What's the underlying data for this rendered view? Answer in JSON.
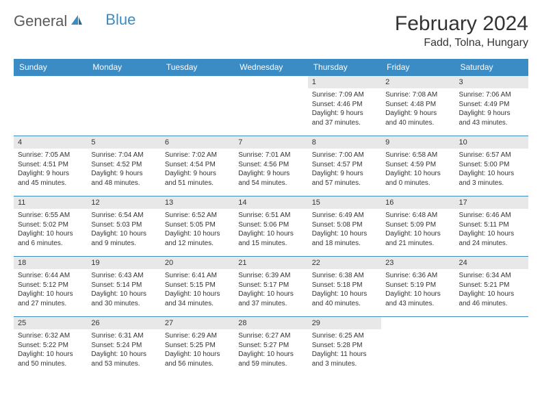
{
  "logo": {
    "text1": "General",
    "text2": "Blue"
  },
  "title": "February 2024",
  "location": "Fadd, Tolna, Hungary",
  "colors": {
    "header_bg": "#3b8bc4",
    "header_fg": "#ffffff",
    "daynum_bg": "#e8e8e8",
    "border": "#3b8bc4",
    "text": "#333333",
    "logo_gray": "#5a5a5a",
    "logo_blue": "#3b8bc4"
  },
  "fonts": {
    "title_size": 30,
    "location_size": 16,
    "header_size": 12,
    "daynum_size": 11,
    "info_size": 10
  },
  "weekdays": [
    "Sunday",
    "Monday",
    "Tuesday",
    "Wednesday",
    "Thursday",
    "Friday",
    "Saturday"
  ],
  "weeks": [
    [
      null,
      null,
      null,
      null,
      {
        "n": "1",
        "sr": "7:09 AM",
        "ss": "4:46 PM",
        "dh": "9",
        "dm": "37"
      },
      {
        "n": "2",
        "sr": "7:08 AM",
        "ss": "4:48 PM",
        "dh": "9",
        "dm": "40"
      },
      {
        "n": "3",
        "sr": "7:06 AM",
        "ss": "4:49 PM",
        "dh": "9",
        "dm": "43"
      }
    ],
    [
      {
        "n": "4",
        "sr": "7:05 AM",
        "ss": "4:51 PM",
        "dh": "9",
        "dm": "45"
      },
      {
        "n": "5",
        "sr": "7:04 AM",
        "ss": "4:52 PM",
        "dh": "9",
        "dm": "48"
      },
      {
        "n": "6",
        "sr": "7:02 AM",
        "ss": "4:54 PM",
        "dh": "9",
        "dm": "51"
      },
      {
        "n": "7",
        "sr": "7:01 AM",
        "ss": "4:56 PM",
        "dh": "9",
        "dm": "54"
      },
      {
        "n": "8",
        "sr": "7:00 AM",
        "ss": "4:57 PM",
        "dh": "9",
        "dm": "57"
      },
      {
        "n": "9",
        "sr": "6:58 AM",
        "ss": "4:59 PM",
        "dh": "10",
        "dm": "0"
      },
      {
        "n": "10",
        "sr": "6:57 AM",
        "ss": "5:00 PM",
        "dh": "10",
        "dm": "3"
      }
    ],
    [
      {
        "n": "11",
        "sr": "6:55 AM",
        "ss": "5:02 PM",
        "dh": "10",
        "dm": "6"
      },
      {
        "n": "12",
        "sr": "6:54 AM",
        "ss": "5:03 PM",
        "dh": "10",
        "dm": "9"
      },
      {
        "n": "13",
        "sr": "6:52 AM",
        "ss": "5:05 PM",
        "dh": "10",
        "dm": "12"
      },
      {
        "n": "14",
        "sr": "6:51 AM",
        "ss": "5:06 PM",
        "dh": "10",
        "dm": "15"
      },
      {
        "n": "15",
        "sr": "6:49 AM",
        "ss": "5:08 PM",
        "dh": "10",
        "dm": "18"
      },
      {
        "n": "16",
        "sr": "6:48 AM",
        "ss": "5:09 PM",
        "dh": "10",
        "dm": "21"
      },
      {
        "n": "17",
        "sr": "6:46 AM",
        "ss": "5:11 PM",
        "dh": "10",
        "dm": "24"
      }
    ],
    [
      {
        "n": "18",
        "sr": "6:44 AM",
        "ss": "5:12 PM",
        "dh": "10",
        "dm": "27"
      },
      {
        "n": "19",
        "sr": "6:43 AM",
        "ss": "5:14 PM",
        "dh": "10",
        "dm": "30"
      },
      {
        "n": "20",
        "sr": "6:41 AM",
        "ss": "5:15 PM",
        "dh": "10",
        "dm": "34"
      },
      {
        "n": "21",
        "sr": "6:39 AM",
        "ss": "5:17 PM",
        "dh": "10",
        "dm": "37"
      },
      {
        "n": "22",
        "sr": "6:38 AM",
        "ss": "5:18 PM",
        "dh": "10",
        "dm": "40"
      },
      {
        "n": "23",
        "sr": "6:36 AM",
        "ss": "5:19 PM",
        "dh": "10",
        "dm": "43"
      },
      {
        "n": "24",
        "sr": "6:34 AM",
        "ss": "5:21 PM",
        "dh": "10",
        "dm": "46"
      }
    ],
    [
      {
        "n": "25",
        "sr": "6:32 AM",
        "ss": "5:22 PM",
        "dh": "10",
        "dm": "50"
      },
      {
        "n": "26",
        "sr": "6:31 AM",
        "ss": "5:24 PM",
        "dh": "10",
        "dm": "53"
      },
      {
        "n": "27",
        "sr": "6:29 AM",
        "ss": "5:25 PM",
        "dh": "10",
        "dm": "56"
      },
      {
        "n": "28",
        "sr": "6:27 AM",
        "ss": "5:27 PM",
        "dh": "10",
        "dm": "59"
      },
      {
        "n": "29",
        "sr": "6:25 AM",
        "ss": "5:28 PM",
        "dh": "11",
        "dm": "3"
      },
      null,
      null
    ]
  ]
}
